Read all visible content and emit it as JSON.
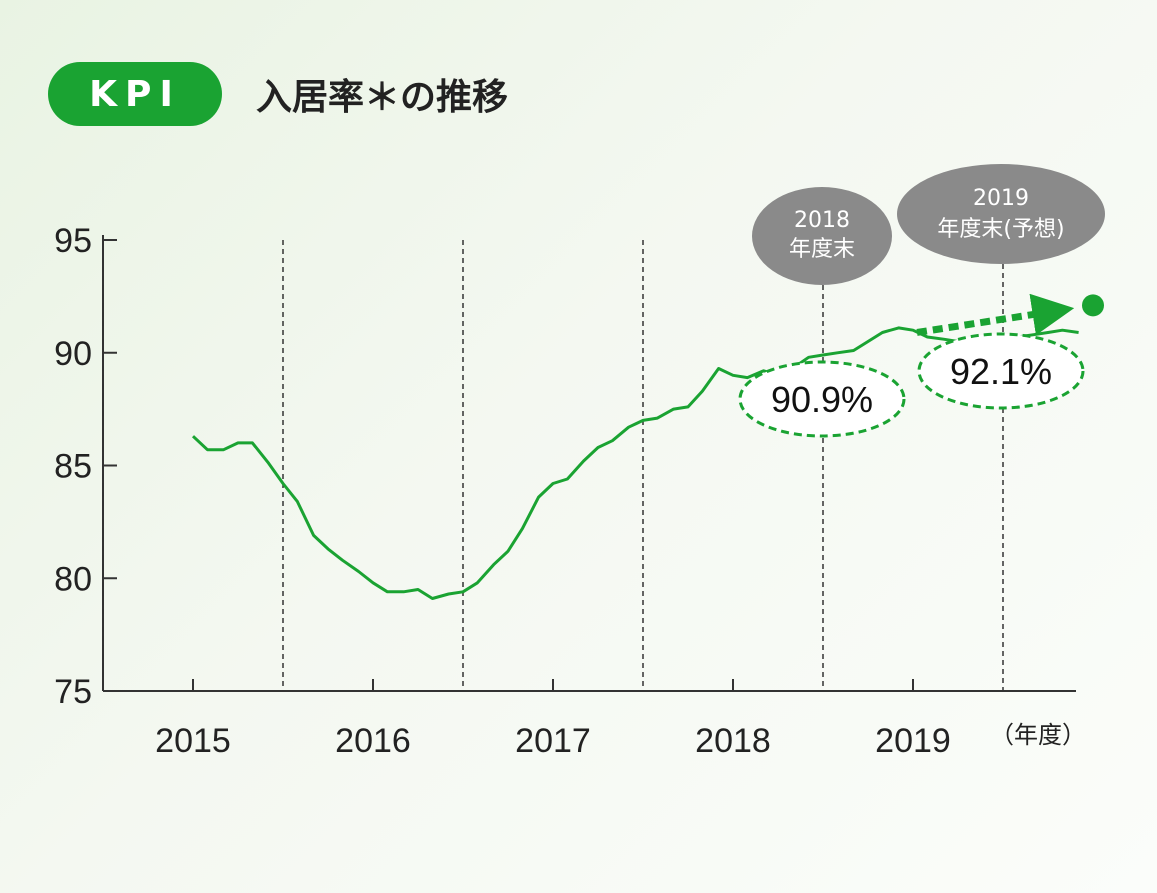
{
  "header": {
    "badge": "KPI",
    "title": "入居率＊の推移"
  },
  "chart_data": {
    "type": "line",
    "title": "入居率＊の推移",
    "xlabel": "",
    "x_unit_label": "（年度）",
    "ylabel": "",
    "ylim": [
      75,
      95
    ],
    "yticks": [
      95,
      90,
      85,
      80,
      75
    ],
    "year_labels": [
      "2015",
      "2016",
      "2017",
      "2018",
      "2019"
    ],
    "series": [
      {
        "color": "#1aa332",
        "x": [
          2015.0,
          2015.08,
          2015.17,
          2015.25,
          2015.33,
          2015.42,
          2015.5,
          2015.58,
          2015.67,
          2015.75,
          2015.83,
          2015.92,
          2016.0,
          2016.08,
          2016.17,
          2016.25,
          2016.33,
          2016.42,
          2016.5,
          2016.58,
          2016.67,
          2016.75,
          2016.83,
          2016.92,
          2017.0,
          2017.08,
          2017.17,
          2017.25,
          2017.33,
          2017.42,
          2017.5,
          2017.58,
          2017.67,
          2017.75,
          2017.83,
          2017.92,
          2018.0,
          2018.08,
          2018.17,
          2018.25,
          2018.33,
          2018.42,
          2018.5,
          2018.58,
          2018.67,
          2018.75,
          2018.83,
          2018.92,
          2019.0,
          2019.08,
          2019.17,
          2019.25,
          2019.33,
          2019.42,
          2019.5,
          2019.58,
          2019.67,
          2019.75,
          2019.83,
          2019.92
        ],
        "values": [
          86.3,
          85.7,
          85.7,
          86.0,
          86.0,
          85.1,
          84.2,
          83.4,
          81.9,
          81.3,
          80.8,
          80.3,
          79.8,
          79.4,
          79.4,
          79.5,
          79.1,
          79.3,
          79.4,
          79.8,
          80.6,
          81.2,
          82.2,
          83.6,
          84.2,
          84.4,
          85.2,
          85.8,
          86.1,
          86.7,
          87.0,
          87.1,
          87.5,
          87.6,
          88.3,
          89.3,
          89.0,
          88.9,
          89.2,
          89.0,
          89.3,
          89.8,
          89.9,
          90.0,
          90.1,
          90.5,
          90.9,
          91.1,
          91.0,
          90.7,
          90.6,
          90.5,
          90.4,
          90.5,
          90.6,
          90.7,
          90.8,
          90.9,
          91.0,
          90.9
        ]
      }
    ],
    "forecast": {
      "color": "#1aa332",
      "from": {
        "x": 2019.0,
        "y": 90.9
      },
      "to": {
        "x": 2020.0,
        "y": 92.1
      }
    },
    "period_markers": [
      {
        "label_line1": "2018",
        "label_line2": "年度末",
        "value_label": "90.9%"
      },
      {
        "label_line1": "2019",
        "label_line2": "年度末(予想)",
        "value_label": "92.1%"
      }
    ],
    "grid": false
  }
}
